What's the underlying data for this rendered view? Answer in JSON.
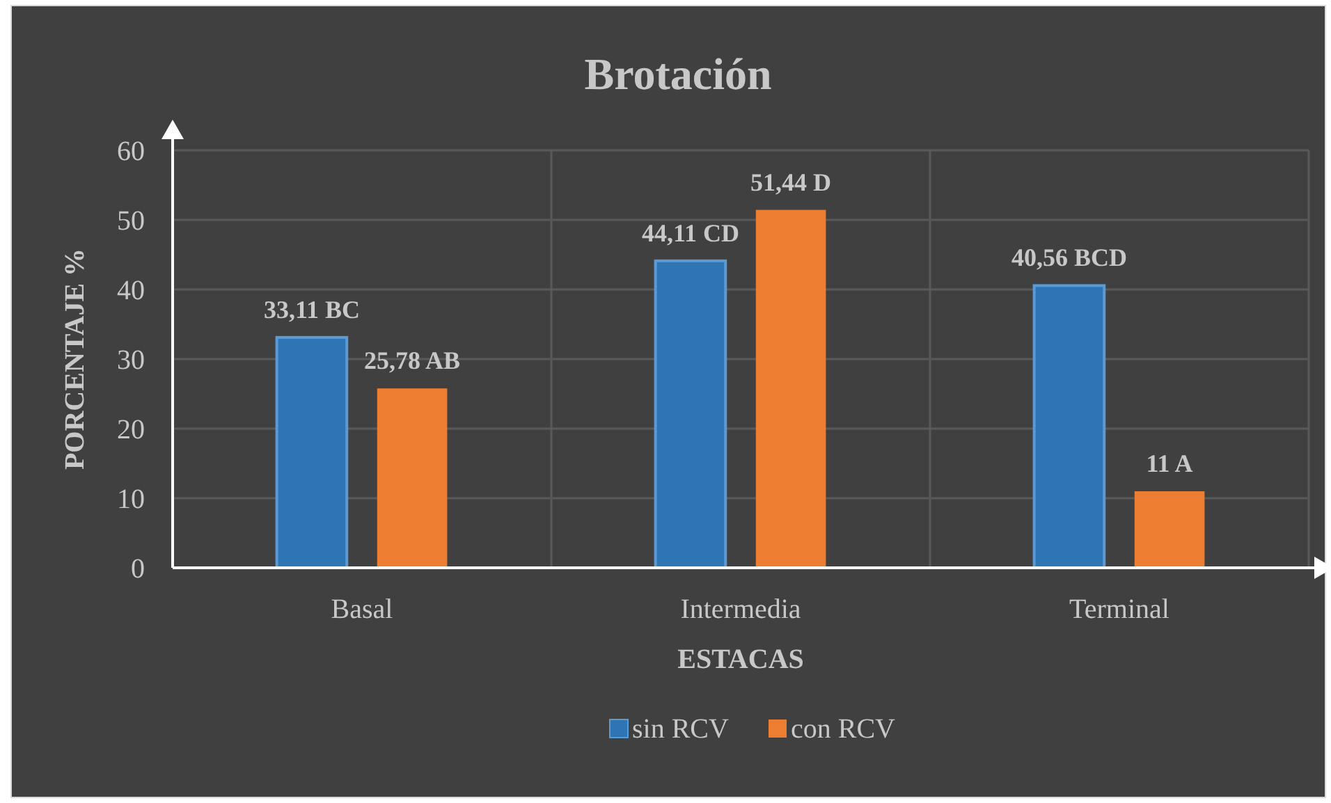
{
  "chart_data": {
    "type": "bar",
    "title": "Brotación",
    "xlabel": "ESTACAS",
    "ylabel": "PORCENTAJE %",
    "categories": [
      "Basal",
      "Intermedia",
      "Terminal"
    ],
    "series": [
      {
        "name": "sin RCV",
        "color": "#2e75b6",
        "values": [
          33.11,
          44.11,
          40.56
        ],
        "value_labels": [
          "33,11 BC",
          "44,11 CD",
          "40,56 BCD"
        ]
      },
      {
        "name": "con RCV",
        "color": "#ed7d31",
        "values": [
          25.78,
          51.44,
          11
        ],
        "value_labels": [
          "25,78 AB",
          "51,44 D",
          "11 A"
        ]
      }
    ],
    "ylim": [
      0,
      60
    ],
    "yticks": [
      0,
      10,
      20,
      30,
      40,
      50,
      60
    ],
    "grid": true,
    "legend": "bottom"
  }
}
